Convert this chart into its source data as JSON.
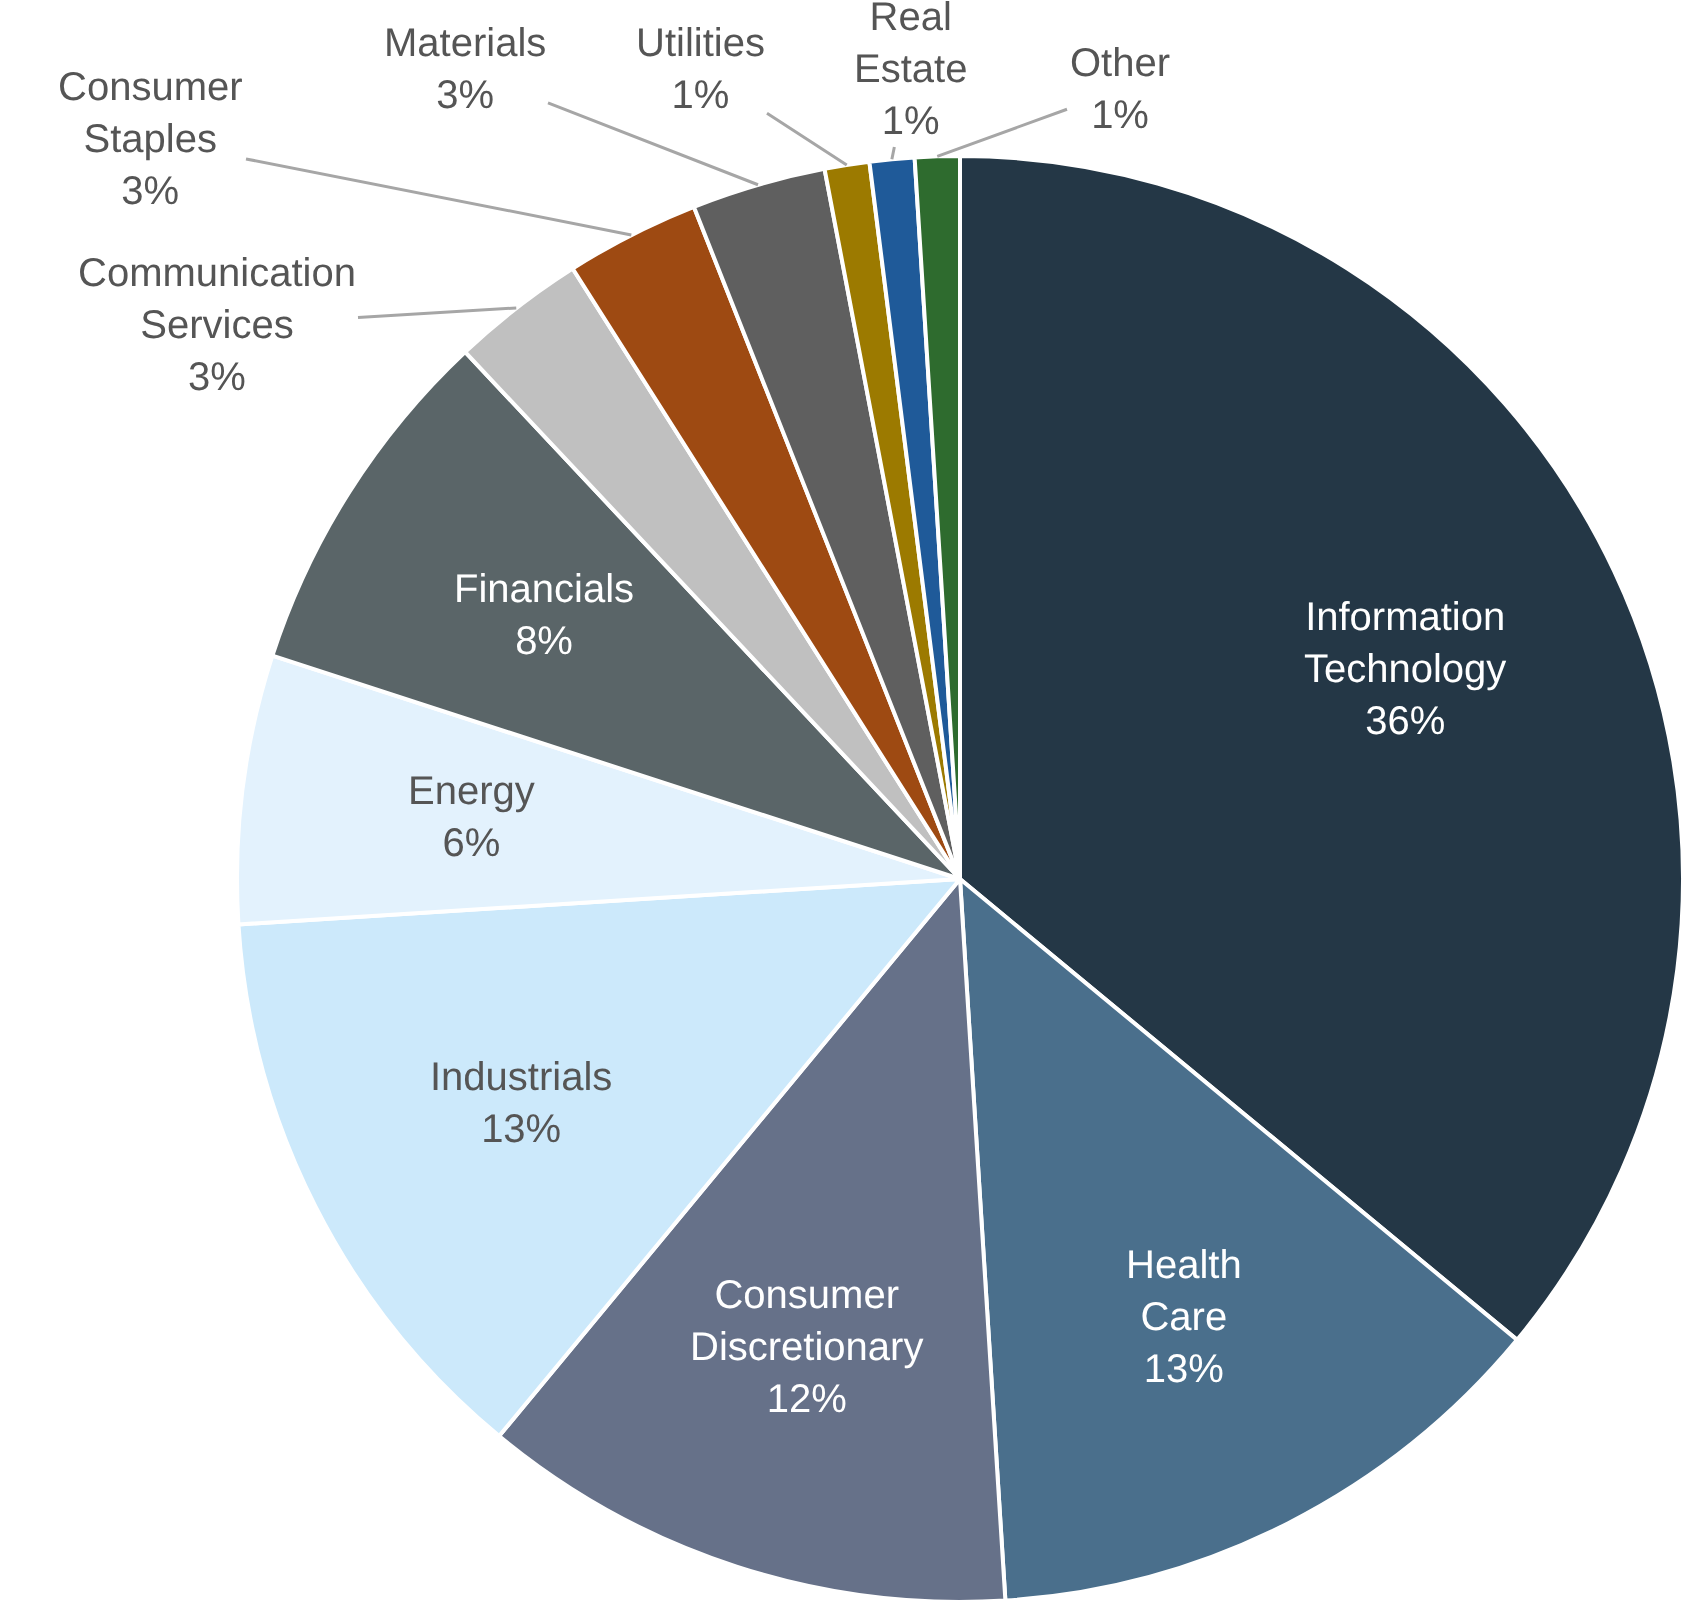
{
  "chart_data": {
    "type": "pie",
    "categories": [
      "Information Technology",
      "Health Care",
      "Consumer Discretionary",
      "Industrials",
      "Energy",
      "Financials",
      "Communication Services",
      "Consumer Staples",
      "Materials",
      "Utilities",
      "Real Estate",
      "Other"
    ],
    "values": [
      36,
      13,
      12,
      13,
      6,
      8,
      3,
      3,
      3,
      1,
      1,
      1
    ],
    "value_labels": [
      "36%",
      "13%",
      "12%",
      "13%",
      "6%",
      "8%",
      "3%",
      "3%",
      "3%",
      "1%",
      "1%",
      "1%"
    ],
    "colors": [
      "#243746",
      "#4a6f8c",
      "#667189",
      "#cce9fb",
      "#e3f2fd",
      "#5a6568",
      "#c0c0c0",
      "#9e4a12",
      "#5f5f5f",
      "#9c7a00",
      "#1f5a99",
      "#2e6b2e"
    ],
    "legend": false
  }
}
